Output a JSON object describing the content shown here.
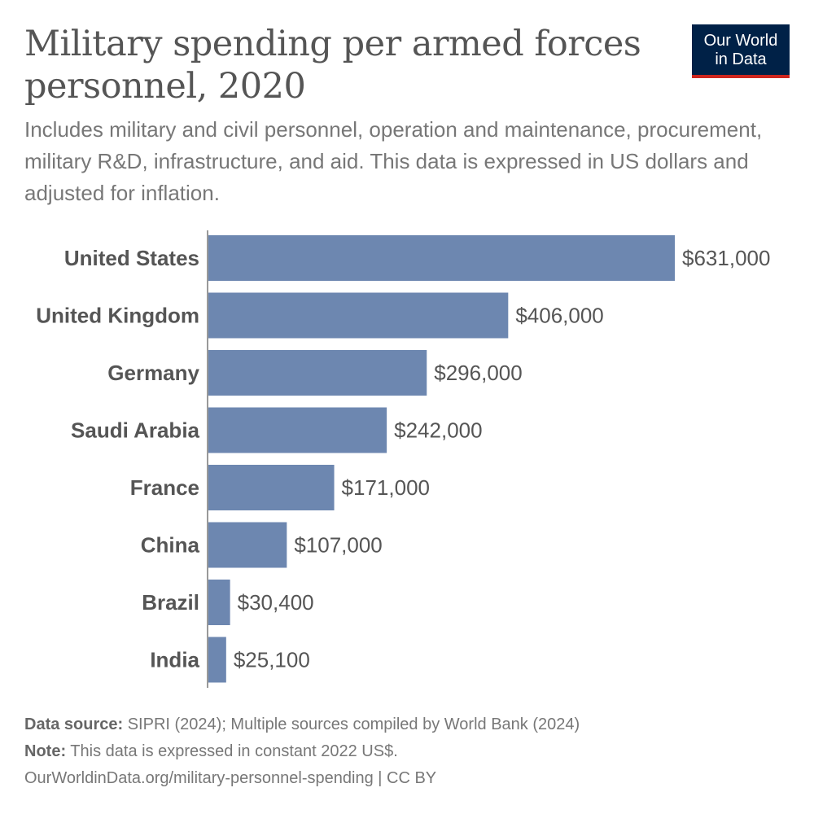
{
  "title": "Military spending per armed forces personnel, 2020",
  "subtitle": "Includes military and civil personnel, operation and maintenance, procurement, military R&D, infrastructure, and aid. This data is expressed in US dollars and adjusted for inflation.",
  "logo": {
    "line1": "Our World",
    "line2": "in Data",
    "bg_color": "#002147",
    "accent_color": "#ce261e"
  },
  "chart_data": {
    "type": "bar",
    "orientation": "horizontal",
    "categories": [
      "United States",
      "United Kingdom",
      "Germany",
      "Saudi Arabia",
      "France",
      "China",
      "Brazil",
      "India"
    ],
    "values": [
      631000,
      406000,
      296000,
      242000,
      171000,
      107000,
      30400,
      25100
    ],
    "value_labels": [
      "$631,000",
      "$406,000",
      "$296,000",
      "$242,000",
      "$171,000",
      "$107,000",
      "$30,400",
      "$25,100"
    ],
    "bar_color": "#6d87b0",
    "grid": false
  },
  "footer": {
    "source_label": "Data source:",
    "source_text": " SIPRI (2024); Multiple sources compiled by World Bank (2024)",
    "note_label": "Note:",
    "note_text": " This data is expressed in constant 2022 US$.",
    "url": "OurWorldinData.org/military-personnel-spending | CC BY"
  }
}
